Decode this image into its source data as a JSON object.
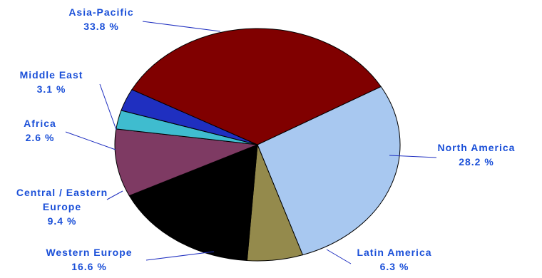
{
  "chart_data": {
    "type": "pie",
    "title": "",
    "legend": "none",
    "slices": [
      {
        "name": "North America",
        "name_lines": [
          "North America"
        ],
        "value": 28.2,
        "value_label": "28.2 %",
        "color": "#a8c8f0"
      },
      {
        "name": "Latin America",
        "name_lines": [
          "Latin America"
        ],
        "value": 6.3,
        "value_label": "6.3 %",
        "color": "#948a4c"
      },
      {
        "name": "Western Europe",
        "name_lines": [
          "Western Europe"
        ],
        "value": 16.6,
        "value_label": "16.6 %",
        "color": "#000000"
      },
      {
        "name": "Central / Eastern Europe",
        "name_lines": [
          "Central / Eastern",
          "Europe"
        ],
        "value": 9.4,
        "value_label": "9.4 %",
        "color": "#7e3a63"
      },
      {
        "name": "Africa",
        "name_lines": [
          "Africa"
        ],
        "value": 2.6,
        "value_label": "2.6 %",
        "color": "#3fbccf"
      },
      {
        "name": "Middle East",
        "name_lines": [
          "Middle East"
        ],
        "value": 3.1,
        "value_label": "3.1 %",
        "color": "#1f2fc0"
      },
      {
        "name": "Asia-Pacific",
        "name_lines": [
          "Asia-Pacific"
        ],
        "value": 33.8,
        "value_label": "33.8 %",
        "color": "#800000"
      }
    ]
  }
}
